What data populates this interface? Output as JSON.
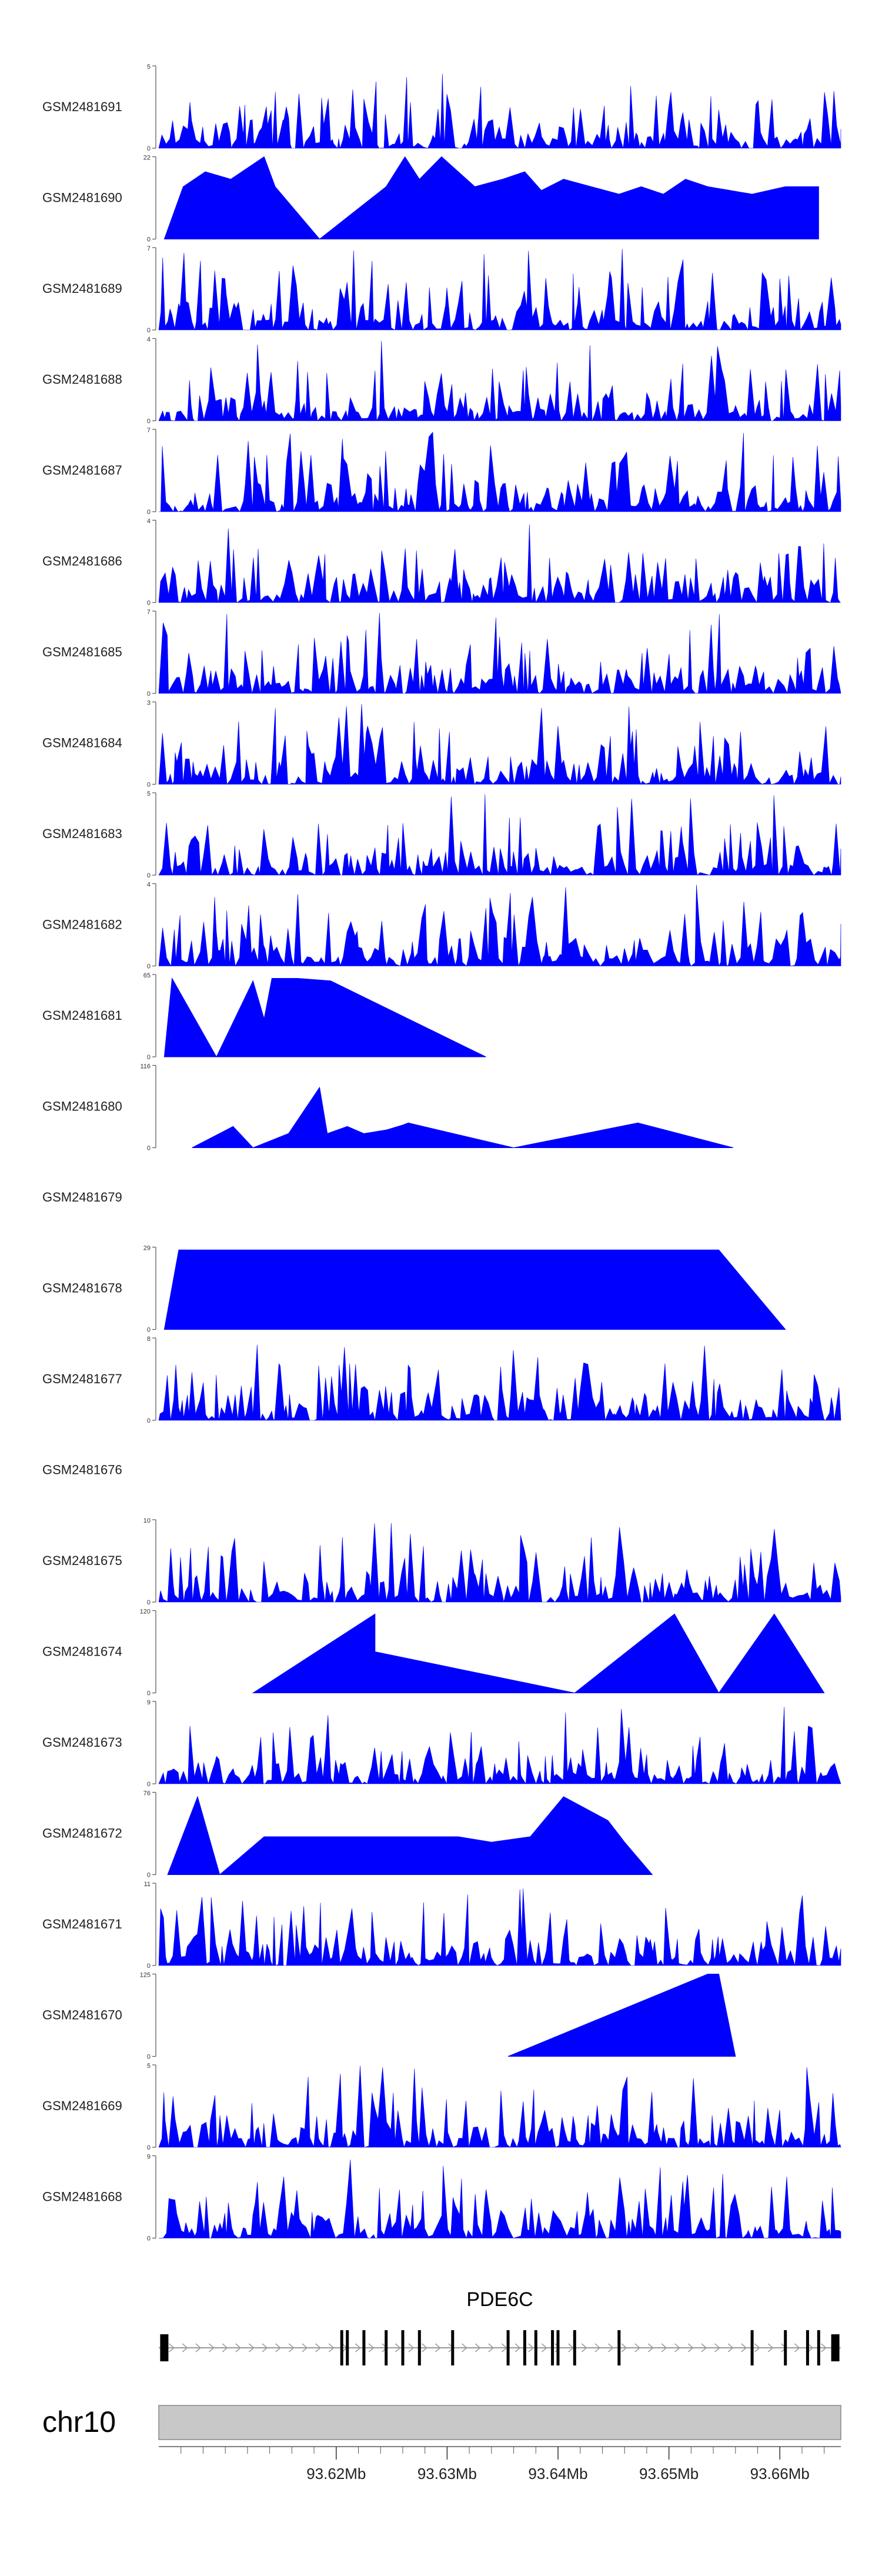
{
  "chart_data": {
    "type": "area",
    "title": "",
    "xlabel": "",
    "ylabel": "",
    "genomic_region": {
      "chromosome": "chr10",
      "start_mb": 93.604,
      "end_mb": 93.6655,
      "tick_values_mb": [
        93.62,
        93.63,
        93.64,
        93.65,
        93.66
      ],
      "tick_labels": [
        "93.62Mb",
        "93.63Mb",
        "93.64Mb",
        "93.65Mb",
        "93.66Mb"
      ]
    },
    "gene_track": {
      "gene_name": "PDE6C",
      "strand": "+",
      "exons_mb": [
        93.6045,
        93.6205,
        93.621,
        93.6225,
        93.6245,
        93.626,
        93.6275,
        93.6305,
        93.6355,
        93.637,
        93.638,
        93.6395,
        93.64,
        93.6415,
        93.6455,
        93.6575,
        93.6605,
        93.6625,
        93.6635,
        93.665
      ]
    },
    "tracks": [
      {
        "name": "GSM2481691",
        "ymax": 5,
        "ymin": 0,
        "profile": "dense",
        "seed": 1,
        "tick_labels": [
          "5",
          "0"
        ]
      },
      {
        "name": "GSM2481690",
        "ymax": 22,
        "ymin": 0,
        "profile": "sparse",
        "seed": 2,
        "tick_labels": [
          "22",
          "0"
        ],
        "peaks": [
          [
            93.6045,
            0,
            0
          ],
          [
            93.6062,
            14,
            0.0015
          ],
          [
            93.6082,
            18,
            0.0015
          ],
          [
            93.6105,
            16,
            0.002
          ],
          [
            93.6135,
            22,
            0.001
          ],
          [
            93.6145,
            14,
            0.004
          ],
          [
            93.6185,
            0,
            0
          ],
          [
            93.6245,
            14,
            0.005
          ],
          [
            93.6262,
            22,
            0.0008
          ],
          [
            93.6275,
            16,
            0.0015
          ],
          [
            93.6295,
            22,
            0.0015
          ],
          [
            93.6325,
            14,
            0.002
          ],
          [
            93.635,
            16,
            0.0015
          ],
          [
            93.637,
            18,
            0.0015
          ],
          [
            93.6385,
            13,
            0.0015
          ],
          [
            93.6405,
            16,
            0.003
          ],
          [
            93.6455,
            12,
            0.002
          ],
          [
            93.6475,
            14,
            0.0015
          ],
          [
            93.6495,
            12,
            0.0015
          ],
          [
            93.6515,
            16,
            0.0015
          ],
          [
            93.6535,
            14,
            0.002
          ],
          [
            93.6575,
            12,
            0.002
          ],
          [
            93.6605,
            14,
            0.002
          ],
          [
            93.6635,
            14,
            0.002
          ]
        ]
      },
      {
        "name": "GSM2481689",
        "ymax": 7,
        "ymin": 0,
        "profile": "dense",
        "seed": 3,
        "tick_labels": [
          "7",
          "0"
        ]
      },
      {
        "name": "GSM2481688",
        "ymax": 4,
        "ymin": 0,
        "profile": "dense",
        "seed": 4,
        "tick_labels": [
          "4",
          "0"
        ]
      },
      {
        "name": "GSM2481687",
        "ymax": 7,
        "ymin": 0,
        "profile": "dense",
        "seed": 5,
        "tick_labels": [
          "7",
          "0"
        ]
      },
      {
        "name": "GSM2481686",
        "ymax": 4,
        "ymin": 0,
        "profile": "dense",
        "seed": 6,
        "tick_labels": [
          "4",
          "0"
        ]
      },
      {
        "name": "GSM2481685",
        "ymax": 7,
        "ymin": 0,
        "profile": "dense",
        "seed": 7,
        "tick_labels": [
          "7",
          "0"
        ]
      },
      {
        "name": "GSM2481684",
        "ymax": 3,
        "ymin": 0,
        "profile": "dense",
        "seed": 8,
        "tick_labels": [
          "3",
          "0"
        ]
      },
      {
        "name": "GSM2481683",
        "ymax": 5,
        "ymin": 0,
        "profile": "dense",
        "seed": 9,
        "tick_labels": [
          "5",
          "0"
        ]
      },
      {
        "name": "GSM2481682",
        "ymax": 4,
        "ymin": 0,
        "profile": "dense",
        "seed": 10,
        "tick_labels": [
          "4",
          "0"
        ]
      },
      {
        "name": "GSM2481681",
        "ymax": 65,
        "ymin": 0,
        "profile": "sparse",
        "seed": 11,
        "tick_labels": [
          "65",
          "0"
        ],
        "peaks": [
          [
            93.6045,
            0,
            0
          ],
          [
            93.6052,
            62,
            0.0045
          ],
          [
            93.6092,
            0,
            0
          ],
          [
            93.6125,
            60,
            0.0035
          ],
          [
            93.6135,
            30,
            0.001
          ],
          [
            93.6142,
            62,
            0.0012
          ],
          [
            93.6165,
            62,
            0.0022
          ],
          [
            93.6195,
            60,
            0.003
          ],
          [
            93.6335,
            0,
            0
          ]
        ]
      },
      {
        "name": "GSM2481680",
        "ymax": 116,
        "ymin": 0,
        "profile": "sparse",
        "seed": 12,
        "tick_labels": [
          "116",
          "0"
        ],
        "peaks": [
          [
            93.607,
            0,
            0
          ],
          [
            93.6107,
            30,
            0.004
          ],
          [
            93.6125,
            0,
            0
          ],
          [
            93.6157,
            20,
            0.003
          ],
          [
            93.6185,
            85,
            0.0015
          ],
          [
            93.6192,
            20,
            0.001
          ],
          [
            93.621,
            30,
            0.002
          ],
          [
            93.6225,
            20,
            0.001
          ],
          [
            93.6245,
            25,
            0.0015
          ],
          [
            93.626,
            32,
            0.001
          ],
          [
            93.6265,
            35,
            0.005
          ],
          [
            93.636,
            0,
            0
          ],
          [
            93.6472,
            35,
            0.011
          ],
          [
            93.6558,
            0,
            0
          ]
        ]
      },
      {
        "name": "GSM2481679",
        "ymax": null,
        "ymin": 0,
        "profile": "empty",
        "seed": 13,
        "tick_labels": [
          "",
          ""
        ]
      },
      {
        "name": "GSM2481678",
        "ymax": 29,
        "ymin": 0,
        "profile": "sparse",
        "seed": 14,
        "tick_labels": [
          "29",
          "0"
        ],
        "peaks": [
          [
            93.6045,
            0,
            0
          ],
          [
            93.6058,
            28,
            0.002
          ],
          [
            93.6085,
            28,
            0.0025
          ],
          [
            93.6115,
            28,
            0.0025
          ],
          [
            93.6145,
            28,
            0.0025
          ],
          [
            93.618,
            28,
            0.003
          ],
          [
            93.6235,
            28,
            0.0055
          ],
          [
            93.6325,
            28,
            0.0055
          ],
          [
            93.6435,
            28,
            0.006
          ],
          [
            93.6545,
            28,
            0.006
          ],
          [
            93.6605,
            0,
            0
          ]
        ]
      },
      {
        "name": "GSM2481677",
        "ymax": 8,
        "ymin": 0,
        "profile": "dense",
        "seed": 15,
        "tick_labels": [
          "8",
          "0"
        ]
      },
      {
        "name": "GSM2481676",
        "ymax": null,
        "ymin": 0,
        "profile": "empty",
        "seed": 16,
        "tick_labels": [
          "",
          ""
        ]
      },
      {
        "name": "GSM2481675",
        "ymax": 10,
        "ymin": 0,
        "profile": "dense",
        "seed": 17,
        "tick_labels": [
          "10",
          "0"
        ]
      },
      {
        "name": "GSM2481674",
        "ymax": 120,
        "ymin": 0,
        "profile": "sparse",
        "seed": 18,
        "tick_labels": [
          "120",
          "0"
        ],
        "peaks": [
          [
            93.6125,
            0,
            0
          ],
          [
            93.6235,
            115,
            0.01
          ],
          [
            93.6235,
            60,
            0.0003
          ],
          [
            93.6415,
            0,
            0
          ],
          [
            93.6505,
            115,
            0.009
          ],
          [
            93.6545,
            0,
            0
          ],
          [
            93.6595,
            115,
            0.005
          ],
          [
            93.664,
            0,
            0
          ]
        ]
      },
      {
        "name": "GSM2481673",
        "ymax": 9,
        "ymin": 0,
        "profile": "dense",
        "seed": 19,
        "tick_labels": [
          "9",
          "0"
        ]
      },
      {
        "name": "GSM2481672",
        "ymax": 76,
        "ymin": 0,
        "profile": "sparse",
        "seed": 20,
        "tick_labels": [
          "76",
          "0"
        ],
        "peaks": [
          [
            93.6048,
            0,
            0
          ],
          [
            93.6075,
            72,
            0.003
          ],
          [
            93.6095,
            0,
            0
          ],
          [
            93.6135,
            35,
            0.003
          ],
          [
            93.6175,
            35,
            0.003
          ],
          [
            93.6215,
            35,
            0.003
          ],
          [
            93.626,
            35,
            0.003
          ],
          [
            93.631,
            35,
            0.003
          ],
          [
            93.634,
            30,
            0.0025
          ],
          [
            93.6375,
            35,
            0.002
          ],
          [
            93.6405,
            72,
            0.003
          ],
          [
            93.6445,
            50,
            0.002
          ],
          [
            93.646,
            30,
            0.001
          ],
          [
            93.6485,
            0,
            0
          ]
        ]
      },
      {
        "name": "GSM2481671",
        "ymax": 11,
        "ymin": 0,
        "profile": "dense",
        "seed": 21,
        "tick_labels": [
          "11",
          "0"
        ]
      },
      {
        "name": "GSM2481670",
        "ymax": 125,
        "ymin": 0,
        "profile": "sparse",
        "seed": 22,
        "tick_labels": [
          "125",
          "0"
        ],
        "peaks": [
          [
            93.6355,
            0,
            0
          ],
          [
            93.6535,
            125,
            0.017
          ],
          [
            93.6545,
            125,
            0.0005
          ],
          [
            93.656,
            0,
            0
          ]
        ]
      },
      {
        "name": "GSM2481669",
        "ymax": 5,
        "ymin": 0,
        "profile": "dense",
        "seed": 23,
        "tick_labels": [
          "5",
          "0"
        ]
      },
      {
        "name": "GSM2481668",
        "ymax": 9,
        "ymin": 0,
        "profile": "dense",
        "seed": 24,
        "tick_labels": [
          "9",
          "0"
        ]
      }
    ],
    "colors": {
      "coverage_fill": "#0000ff",
      "axis": "#555555",
      "gene": "#000000",
      "intron_line": "#999999",
      "ideogram_fill": "#c8c8c8",
      "ideogram_border": "#888888"
    }
  }
}
